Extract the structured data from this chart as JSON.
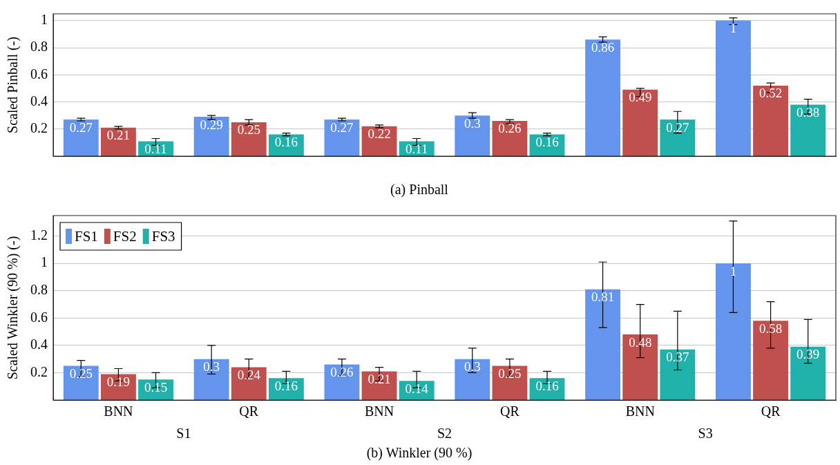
{
  "chart_data": [
    {
      "type": "bar",
      "title": "(a) Pinball",
      "ylabel": "Scaled Pinball (-)",
      "categories": [
        null,
        null,
        null,
        null,
        null,
        null
      ],
      "series": [
        {
          "color": "#6495ed",
          "values": [
            0.27,
            0.29,
            0.27,
            0.3,
            0.86,
            1
          ],
          "errors": [
            0.01,
            [
              0.27,
              0.3
            ],
            0.01,
            [
              0.28,
              0.32
            ],
            [
              0.84,
              0.88
            ],
            [
              0.97,
              1.02
            ]
          ]
        },
        {
          "color": "#c0504d",
          "values": [
            0.21,
            0.25,
            0.22,
            0.26,
            0.49,
            0.52
          ],
          "errors": [
            0.01,
            [
              0.23,
              0.27
            ],
            0.01,
            [
              0.24,
              0.27
            ],
            [
              0.44,
              0.5
            ],
            [
              0.47,
              0.54
            ]
          ]
        },
        {
          "color": "#20b2aa",
          "values": [
            0.11,
            0.16,
            0.11,
            0.16,
            0.27,
            0.38
          ],
          "errors": [
            [
              0.08,
              0.13
            ],
            0.01,
            [
              0.08,
              0.13
            ],
            0.01,
            [
              0.17,
              0.33
            ],
            [
              0.31,
              0.42
            ]
          ]
        }
      ],
      "ylim": [
        0,
        1.05
      ],
      "yticks": [
        0.2,
        0.4,
        0.6,
        0.8,
        1
      ],
      "grid": "y",
      "legend": false,
      "data_labels": true
    },
    {
      "type": "bar",
      "title": "(b) Winkler (90 %)",
      "ylabel": "Scaled Winkler (90 %) (-)",
      "categories": [
        "BNN",
        "QR",
        "BNN",
        "QR",
        "BNN",
        "QR"
      ],
      "series": [
        {
          "name": "FS1",
          "color": "#6495ed",
          "values": [
            0.25,
            0.3,
            0.26,
            0.3,
            0.81,
            1
          ],
          "errors": [
            [
              0.17,
              0.29
            ],
            [
              0.19,
              0.4
            ],
            [
              0.18,
              0.3
            ],
            [
              0.2,
              0.38
            ],
            [
              0.53,
              1.01
            ],
            [
              0.64,
              1.31
            ]
          ]
        },
        {
          "name": "FS2",
          "color": "#c0504d",
          "values": [
            0.19,
            0.24,
            0.21,
            0.25,
            0.48,
            0.58
          ],
          "errors": [
            [
              0.14,
              0.23
            ],
            [
              0.16,
              0.3
            ],
            [
              0.14,
              0.24
            ],
            [
              0.17,
              0.3
            ],
            [
              0.31,
              0.7
            ],
            [
              0.38,
              0.72
            ]
          ]
        },
        {
          "name": "FS3",
          "color": "#20b2aa",
          "values": [
            0.15,
            0.16,
            0.14,
            0.16,
            0.37,
            0.39
          ],
          "errors": [
            [
              0.09,
              0.2
            ],
            [
              0.12,
              0.21
            ],
            [
              0.09,
              0.21
            ],
            [
              0.12,
              0.21
            ],
            [
              0.22,
              0.65
            ],
            [
              0.27,
              0.59
            ]
          ]
        }
      ],
      "ylim": [
        0,
        1.35
      ],
      "yticks": [
        0.2,
        0.4,
        0.6,
        0.8,
        1,
        1.2
      ],
      "grid": "y",
      "legend": "top left",
      "data_labels": true,
      "annotations": [
        "S1",
        "S2",
        "S3"
      ]
    }
  ]
}
